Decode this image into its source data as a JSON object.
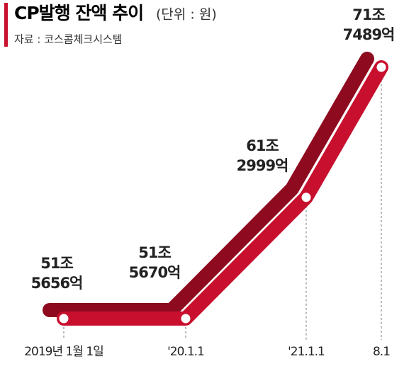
{
  "chart_data": {
    "type": "line",
    "title": "CP발행 잔액 추이",
    "subtitle": "(단위 : 원)",
    "source": "자료 : 코스콤체크시스템",
    "categories": [
      "2019년 1월 1일",
      "'20.1.1",
      "'21.1.1",
      "8.1"
    ],
    "values": [
      515656,
      515670,
      612999,
      717489
    ],
    "value_labels": [
      [
        "51조",
        "5656억"
      ],
      [
        "51조",
        "5670억"
      ],
      [
        "61조",
        "2999억"
      ],
      [
        "71조",
        "7489억"
      ]
    ],
    "color": "#c8102e"
  }
}
